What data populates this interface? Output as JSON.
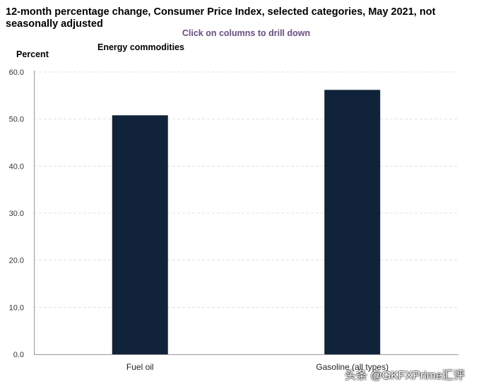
{
  "title": "12-month percentage change, Consumer Price Index, selected categories, May 2021, not seasonally adjusted",
  "subtitle": "Click on columns to drill down",
  "drilldown_label": "Energy commodities",
  "watermark": "头条 @GKFXPrime汇评",
  "colors": {
    "bar": "#10233a",
    "grid": "#e0e0e0",
    "axis": "#999999"
  },
  "chart_data": {
    "type": "bar",
    "title": "12-month percentage change, Consumer Price Index, selected categories, May 2021, not seasonally adjusted",
    "xlabel": "",
    "ylabel": "Percent",
    "categories": [
      "Fuel oil",
      "Gasoline (all types)"
    ],
    "values": [
      50.8,
      56.2
    ],
    "ylim": [
      0,
      60
    ],
    "yticks": [
      "0.0",
      "10.0",
      "20.0",
      "30.0",
      "40.0",
      "50.0",
      "60.0"
    ],
    "grid": true,
    "legend": "none"
  }
}
